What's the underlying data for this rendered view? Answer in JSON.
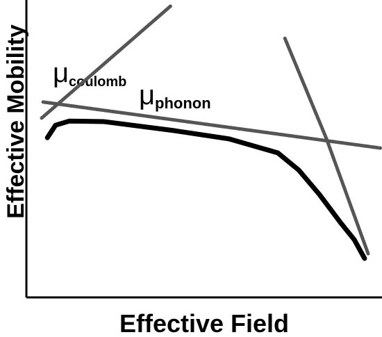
{
  "chart_data": {
    "type": "line",
    "xlabel": "Effective Field",
    "ylabel": "Effective Mobility",
    "xlim": [
      0,
      100
    ],
    "ylim": [
      0,
      100
    ],
    "annotations": [
      {
        "symbol": "μ",
        "sub": "coulomb"
      },
      {
        "symbol": "μ",
        "sub": "phonon"
      }
    ],
    "series": [
      {
        "color": "#555555",
        "style": "dotted",
        "x": [
          4.3,
          40.5
        ],
        "values": [
          60.3,
          97.9
        ]
      },
      {
        "color": "#555555",
        "style": "dotted",
        "x": [
          4.7,
          99.6
        ],
        "values": [
          65.7,
          50.2
        ]
      },
      {
        "color": "#555555",
        "style": "dotted",
        "x": [
          72.7,
          84.4,
          96.1
        ],
        "values": [
          87.1,
          53.3,
          14.7
        ]
      },
      {
        "color": "#000000",
        "style": "solid",
        "x": [
          5.9,
          8.2,
          12.1,
          21.9,
          41.4,
          57.0,
          70.7,
          76.6,
          82.4,
          88.3,
          92.2,
          95.1
        ],
        "values": [
          53.7,
          57.9,
          59.3,
          59.1,
          56.1,
          53.3,
          48.6,
          42.8,
          34.6,
          25.2,
          19.4,
          13.1
        ]
      }
    ]
  }
}
